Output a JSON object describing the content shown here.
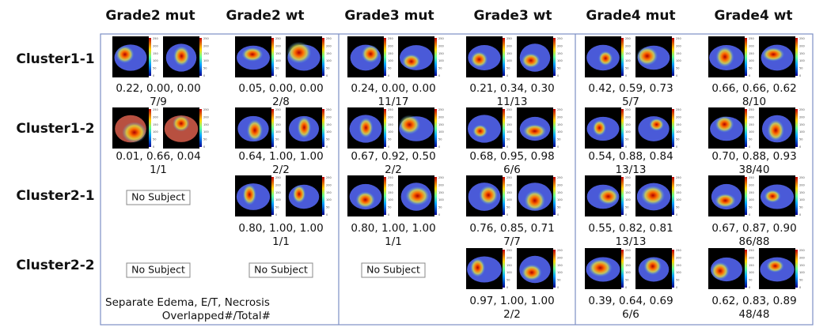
{
  "columns": [
    "Grade2 mut",
    "Grade2 wt",
    "Grade3 mut",
    "Grade3 wt",
    "Grade4 mut",
    "Grade4 wt"
  ],
  "rows": [
    "Cluster1-1",
    "Cluster1-2",
    "Cluster2-1",
    "Cluster2-2"
  ],
  "colorbar_ticks": [
    "250",
    "200",
    "150",
    "100",
    "50",
    "0"
  ],
  "cells": [
    [
      {
        "scores": "0.22, 0.00, 0.00",
        "fraction": "7/9"
      },
      {
        "scores": "0.05, 0.00, 0.00",
        "fraction": "2/8"
      },
      {
        "scores": "0.24, 0.00, 0.00",
        "fraction": "11/17"
      },
      {
        "scores": "0.21, 0.34, 0.30",
        "fraction": "11/13"
      },
      {
        "scores": "0.42, 0.59, 0.73",
        "fraction": "5/7"
      },
      {
        "scores": "0.66, 0.66, 0.62",
        "fraction": "8/10"
      }
    ],
    [
      {
        "scores": "0.01, 0.66, 0.04",
        "fraction": "1/1"
      },
      {
        "scores": "0.64, 1.00, 1.00",
        "fraction": "2/2"
      },
      {
        "scores": "0.67, 0.92, 0.50",
        "fraction": "2/2"
      },
      {
        "scores": "0.68, 0.95, 0.98",
        "fraction": "6/6"
      },
      {
        "scores": "0.54, 0.88, 0.84",
        "fraction": "13/13"
      },
      {
        "scores": "0.70, 0.88, 0.93",
        "fraction": "38/40"
      }
    ],
    [
      {
        "empty": "No Subject"
      },
      {
        "scores": "0.80, 1.00, 1.00",
        "fraction": "1/1"
      },
      {
        "scores": "0.80, 1.00, 1.00",
        "fraction": "1/1"
      },
      {
        "scores": "0.76, 0.85, 0.71",
        "fraction": "7/7"
      },
      {
        "scores": "0.55, 0.82, 0.81",
        "fraction": "13/13"
      },
      {
        "scores": "0.67, 0.87, 0.90",
        "fraction": "86/88"
      }
    ],
    [
      {
        "empty": "No Subject"
      },
      {
        "empty": "No Subject"
      },
      {
        "empty": "No Subject"
      },
      {
        "scores": "0.97, 1.00, 1.00",
        "fraction": "2/2"
      },
      {
        "scores": "0.39, 0.64, 0.69",
        "fraction": "6/6"
      },
      {
        "scores": "0.62, 0.83, 0.89",
        "fraction": "48/48"
      }
    ]
  ],
  "legend": [
    "Separate Edema, E/T, Necrosis",
    "Overlapped#/Total#"
  ]
}
